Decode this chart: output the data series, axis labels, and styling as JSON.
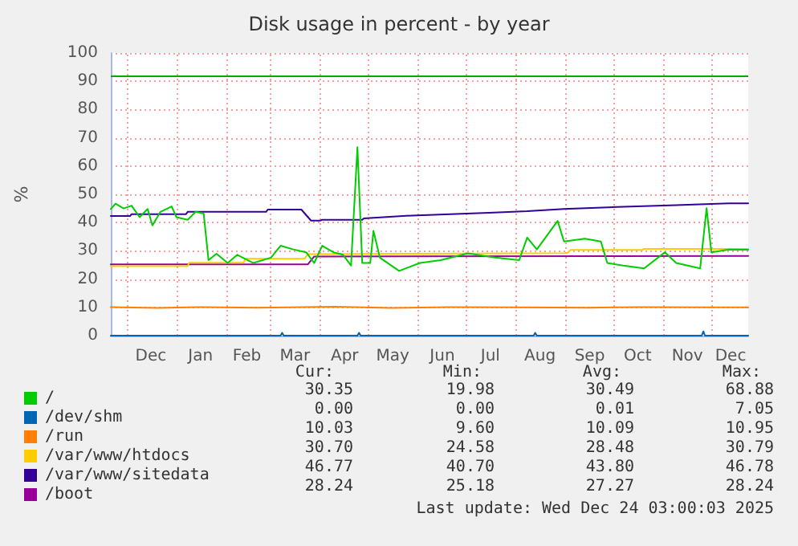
{
  "chart_data": {
    "type": "line",
    "title": "Disk usage in percent - by year",
    "ylabel": "%",
    "xlim": [
      "2024-11-21",
      "2025-12-24"
    ],
    "xticks": [
      {
        "value": "2024-12-01",
        "label": null
      },
      {
        "value": "2024-12-16",
        "label": "Dec"
      },
      {
        "value": "2025-01-01",
        "label": null
      },
      {
        "value": "2025-01-16",
        "label": "Jan"
      },
      {
        "value": "2025-02-01",
        "label": null
      },
      {
        "value": "2025-02-14",
        "label": "Feb"
      },
      {
        "value": "2025-03-01",
        "label": null
      },
      {
        "value": "2025-03-16",
        "label": "Mar"
      },
      {
        "value": "2025-04-01",
        "label": null
      },
      {
        "value": "2025-04-16",
        "label": "Apr"
      },
      {
        "value": "2025-05-01",
        "label": null
      },
      {
        "value": "2025-05-16",
        "label": "May"
      },
      {
        "value": "2025-06-01",
        "label": null
      },
      {
        "value": "2025-06-16",
        "label": "Jun"
      },
      {
        "value": "2025-07-01",
        "label": null
      },
      {
        "value": "2025-07-16",
        "label": "Jul"
      },
      {
        "value": "2025-08-01",
        "label": null
      },
      {
        "value": "2025-08-16",
        "label": "Aug"
      },
      {
        "value": "2025-09-01",
        "label": null
      },
      {
        "value": "2025-09-16",
        "label": "Sep"
      },
      {
        "value": "2025-10-01",
        "label": null
      },
      {
        "value": "2025-10-16",
        "label": "Oct"
      },
      {
        "value": "2025-11-01",
        "label": null
      },
      {
        "value": "2025-11-16",
        "label": "Nov"
      },
      {
        "value": "2025-12-01",
        "label": null
      },
      {
        "value": "2025-12-13",
        "label": "Dec"
      }
    ],
    "ylim": [
      0,
      100
    ],
    "yticks": [
      0,
      10,
      20,
      30,
      40,
      50,
      60,
      70,
      80,
      90,
      100
    ],
    "grid": true,
    "legend": "bottom left",
    "marker": "none",
    "line_style": "solid",
    "ref_lines": [
      {
        "axis": "y",
        "value": 92,
        "color": "#00aa00"
      }
    ],
    "series": [
      {
        "name": "/",
        "color": "#00cc00",
        "x": [
          "2024-11-21",
          "2024-11-24",
          "2024-11-29",
          "2024-12-04",
          "2024-12-09",
          "2024-12-14",
          "2024-12-17",
          "2024-12-22",
          "2024-12-29",
          "2025-01-01",
          "2025-01-08",
          "2025-01-13",
          "2025-01-18",
          "2025-01-21",
          "2025-01-26",
          "2025-02-02",
          "2025-02-08",
          "2025-02-18",
          "2025-03-01",
          "2025-03-07",
          "2025-03-15",
          "2025-03-23",
          "2025-03-28",
          "2025-04-02",
          "2025-04-09",
          "2025-04-15",
          "2025-04-20",
          "2025-04-24",
          "2025-04-27",
          "2025-05-02",
          "2025-05-04",
          "2025-05-08",
          "2025-05-20",
          "2025-06-02",
          "2025-06-15",
          "2025-07-02",
          "2025-07-19",
          "2025-08-03",
          "2025-08-08",
          "2025-08-14",
          "2025-08-27",
          "2025-08-31",
          "2025-09-13",
          "2025-09-23",
          "2025-09-27",
          "2025-10-07",
          "2025-10-20",
          "2025-11-02",
          "2025-11-09",
          "2025-11-24",
          "2025-11-28",
          "2025-12-01",
          "2025-12-12",
          "2025-12-24"
        ],
        "values": [
          44.8,
          46.7,
          45,
          46,
          41.9,
          44.8,
          39,
          43.8,
          45.7,
          41.9,
          41,
          43.8,
          43.2,
          26.7,
          29,
          25.7,
          28.6,
          25.7,
          27.6,
          31.8,
          30.5,
          29.5,
          25.7,
          31.8,
          29.5,
          28.6,
          24.8,
          66.7,
          25.7,
          25.7,
          37.1,
          27.6,
          22.9,
          25.7,
          26.7,
          29.1,
          27.6,
          26.7,
          34.7,
          30.5,
          40.6,
          33.3,
          34.3,
          33.3,
          25.7,
          24.8,
          23.8,
          29.5,
          25.7,
          23.8,
          45.1,
          29.5,
          30.5,
          30.4
        ]
      },
      {
        "name": "/dev/shm",
        "color": "#0066b3",
        "x": [
          "2024-11-21",
          "2025-03-07",
          "2025-03-08",
          "2025-03-09",
          "2025-04-24",
          "2025-04-25",
          "2025-04-26",
          "2025-08-12",
          "2025-08-13",
          "2025-08-14",
          "2025-11-25",
          "2025-11-26",
          "2025-11-27",
          "2025-12-24"
        ],
        "values": [
          0,
          0,
          1,
          0,
          0,
          1,
          0,
          0,
          1,
          0,
          0,
          1.5,
          0,
          0
        ]
      },
      {
        "name": "/run",
        "color": "#ff8000",
        "x": [
          "2024-11-21",
          "2024-12-20",
          "2025-01-15",
          "2025-02-20",
          "2025-04-10",
          "2025-05-15",
          "2025-06-20",
          "2025-08-01",
          "2025-09-15",
          "2025-10-20",
          "2025-11-30",
          "2025-12-24"
        ],
        "values": [
          10.1,
          9.8,
          10.1,
          9.9,
          10.2,
          9.8,
          10.1,
          10,
          9.9,
          10.1,
          10,
          10
        ]
      },
      {
        "name": "/var/www/htdocs",
        "color": "#ffcc00",
        "x": [
          "2024-11-21",
          "2025-01-08",
          "2025-01-09",
          "2025-02-12",
          "2025-02-13",
          "2025-03-22",
          "2025-03-24",
          "2025-09-02",
          "2025-09-04",
          "2025-10-19",
          "2025-10-20",
          "2025-12-24"
        ],
        "values": [
          24.6,
          24.6,
          25.8,
          25.8,
          27.2,
          27.2,
          28.8,
          29.2,
          30.3,
          30.3,
          30.7,
          30.7
        ]
      },
      {
        "name": "/var/www/sitedata",
        "color": "#330099",
        "x": [
          "2024-11-21",
          "2024-12-03",
          "2024-12-04",
          "2025-01-07",
          "2025-01-08",
          "2025-02-26",
          "2025-02-27",
          "2025-03-20",
          "2025-03-26",
          "2025-04-01",
          "2025-04-02",
          "2025-04-27",
          "2025-04-28",
          "2025-05-28",
          "2025-06-21",
          "2025-07-15",
          "2025-08-08",
          "2025-08-31",
          "2025-10-03",
          "2025-11-09",
          "2025-12-12",
          "2025-12-24"
        ],
        "values": [
          42.3,
          42.3,
          43,
          43,
          43.8,
          43.8,
          44.6,
          44.6,
          40.7,
          40.7,
          41,
          41,
          41.5,
          42.5,
          43,
          43.5,
          44,
          44.8,
          45.5,
          46.2,
          46.8,
          46.8
        ]
      },
      {
        "name": "/boot",
        "color": "#990099",
        "x": [
          "2024-11-21",
          "2025-03-24",
          "2025-03-28",
          "2025-12-24"
        ],
        "values": [
          25.2,
          25.2,
          28,
          28.2
        ]
      }
    ],
    "annotations": [
      "Cur:",
      "Min:",
      "Avg:",
      "Max:",
      "30.35",
      "19.98",
      "30.49",
      "68.88",
      "0.00",
      "0.00",
      "0.01",
      "7.05",
      "10.03",
      "9.60",
      "10.09",
      "10.95",
      "30.70",
      "24.58",
      "28.48",
      "30.79",
      "46.77",
      "40.70",
      "43.80",
      "46.78",
      "28.24",
      "25.18",
      "27.27",
      "28.24",
      "Last update: Wed Dec 24 03:00:03 2025"
    ]
  }
}
